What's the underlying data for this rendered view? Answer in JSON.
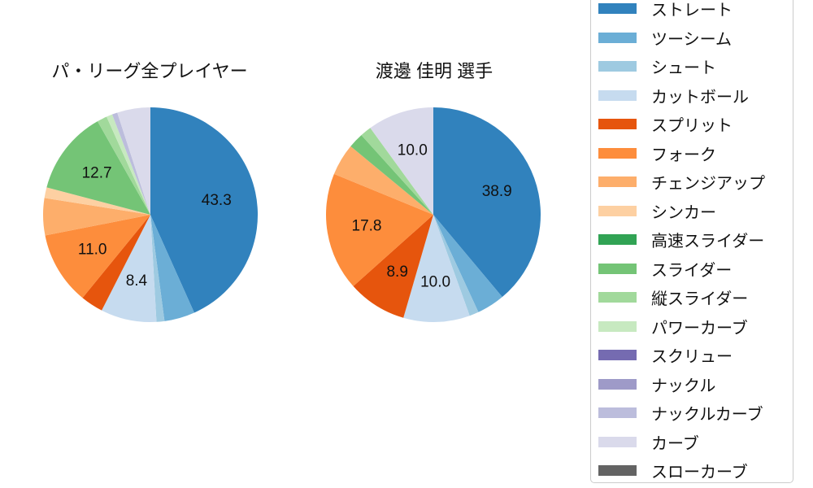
{
  "figure": {
    "background": "#ffffff",
    "legend_border_color": "#cccccc",
    "text_color": "#111111"
  },
  "legend": {
    "items": [
      {
        "label": "ストレート",
        "color": "#3182bd"
      },
      {
        "label": "ツーシーム",
        "color": "#6baed6"
      },
      {
        "label": "シュート",
        "color": "#9ecae1"
      },
      {
        "label": "カットボール",
        "color": "#c6dbef"
      },
      {
        "label": "スプリット",
        "color": "#e6550d"
      },
      {
        "label": "フォーク",
        "color": "#fd8d3c"
      },
      {
        "label": "チェンジアップ",
        "color": "#fdae6b"
      },
      {
        "label": "シンカー",
        "color": "#fdd0a2"
      },
      {
        "label": "高速スライダー",
        "color": "#31a354"
      },
      {
        "label": "スライダー",
        "color": "#74c476"
      },
      {
        "label": "縦スライダー",
        "color": "#a1d99b"
      },
      {
        "label": "パワーカーブ",
        "color": "#c7e9c0"
      },
      {
        "label": "スクリュー",
        "color": "#756bb1"
      },
      {
        "label": "ナックル",
        "color": "#9e9ac8"
      },
      {
        "label": "ナックルカーブ",
        "color": "#bcbddc"
      },
      {
        "label": "カーブ",
        "color": "#dadaeb"
      },
      {
        "label": "スローカーブ",
        "color": "#636363"
      }
    ]
  },
  "chart_data": [
    {
      "type": "pie",
      "title": "パ・リーグ全プレイヤー",
      "unit": "percent",
      "start_angle": "12-oclock",
      "direction": "clockwise",
      "label_threshold": 8,
      "labels": [
        "ストレート",
        "ツーシーム",
        "シュート",
        "カットボール",
        "スプリット",
        "フォーク",
        "チェンジアップ",
        "シンカー",
        "スライダー",
        "縦スライダー",
        "パワーカーブ",
        "ナックルカーブ",
        "カーブ"
      ],
      "values": [
        43.3,
        4.6,
        1.2,
        8.4,
        3.4,
        11.0,
        5.6,
        1.6,
        12.7,
        1.5,
        0.9,
        0.8,
        5.0
      ],
      "colors": [
        "#3182bd",
        "#6baed6",
        "#9ecae1",
        "#c6dbef",
        "#e6550d",
        "#fd8d3c",
        "#fdae6b",
        "#fdd0a2",
        "#74c476",
        "#a1d99b",
        "#c7e9c0",
        "#bcbddc",
        "#dadaeb"
      ],
      "shown_value_labels": [
        "43.3",
        "8.4",
        "11.0",
        "12.7"
      ]
    },
    {
      "type": "pie",
      "title": "渡邊 佳明 選手",
      "unit": "percent",
      "start_angle": "12-oclock",
      "direction": "clockwise",
      "label_threshold": 8,
      "labels": [
        "ストレート",
        "ツーシーム",
        "シュート",
        "カットボール",
        "スプリット",
        "フォーク",
        "チェンジアップ",
        "スライダー",
        "縦スライダー",
        "カーブ"
      ],
      "values": [
        38.9,
        4.2,
        1.4,
        10.0,
        8.9,
        17.8,
        4.8,
        2.3,
        1.7,
        10.0
      ],
      "colors": [
        "#3182bd",
        "#6baed6",
        "#9ecae1",
        "#c6dbef",
        "#e6550d",
        "#fd8d3c",
        "#fdae6b",
        "#74c476",
        "#a1d99b",
        "#dadaeb"
      ],
      "shown_value_labels": [
        "38.9",
        "10.0",
        "8.9",
        "17.8",
        "10.0"
      ]
    }
  ]
}
